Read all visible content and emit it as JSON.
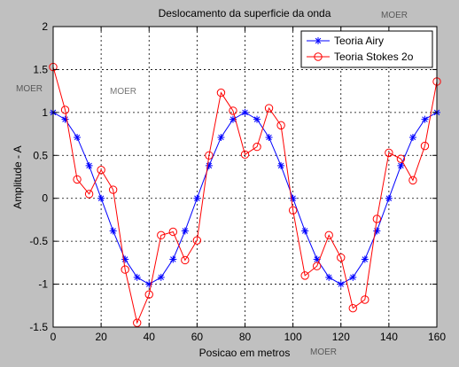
{
  "chart_data": {
    "type": "line",
    "title": "Deslocamento da superficie da onda",
    "xlabel": "Posicao em metros",
    "ylabel": "Amplitude - A",
    "xlim": [
      0,
      160
    ],
    "ylim": [
      -1.5,
      2
    ],
    "xticks": [
      0,
      20,
      40,
      60,
      80,
      100,
      120,
      140,
      160
    ],
    "yticks": [
      -1.5,
      -1,
      -0.5,
      0,
      0.5,
      1,
      1.5,
      2
    ],
    "xtick_labels": [
      "0",
      "20",
      "40",
      "60",
      "80",
      "100",
      "120",
      "140",
      "160"
    ],
    "ytick_labels": [
      "-1.5",
      "-1",
      "-0.5",
      "0",
      "0.5",
      "1",
      "1.5",
      "2"
    ],
    "grid": true,
    "legend_position": "top-right",
    "x": [
      0,
      5,
      10,
      15,
      20,
      25,
      30,
      35,
      40,
      45,
      50,
      55,
      60,
      65,
      70,
      75,
      80,
      85,
      90,
      95,
      100,
      105,
      110,
      115,
      120,
      125,
      130,
      135,
      140,
      145,
      150,
      155,
      160
    ],
    "series": [
      {
        "name": "Teoria Airy",
        "color": "#0000ff",
        "marker": "star",
        "values": [
          1,
          0.92,
          0.71,
          0.38,
          0,
          -0.38,
          -0.71,
          -0.92,
          -1,
          -0.92,
          -0.71,
          -0.38,
          0,
          0.38,
          0.71,
          0.92,
          1,
          0.92,
          0.71,
          0.38,
          0,
          -0.38,
          -0.71,
          -0.92,
          -1,
          -0.92,
          -0.71,
          -0.38,
          0,
          0.38,
          0.71,
          0.92,
          1
        ]
      },
      {
        "name": "Teoria Stokes 2o",
        "color": "#ff0000",
        "marker": "circle",
        "values": [
          1.53,
          1.03,
          0.22,
          0.05,
          0.33,
          0.1,
          -0.83,
          -1.45,
          -1.12,
          -0.43,
          -0.39,
          -0.72,
          -0.49,
          0.5,
          1.23,
          1.02,
          0.51,
          0.6,
          1.05,
          0.85,
          -0.14,
          -0.9,
          -0.79,
          -0.43,
          -0.69,
          -1.28,
          -1.18,
          -0.24,
          0.53,
          0.46,
          0.21,
          0.61,
          1.36
        ]
      }
    ]
  },
  "watermark": "MOER"
}
